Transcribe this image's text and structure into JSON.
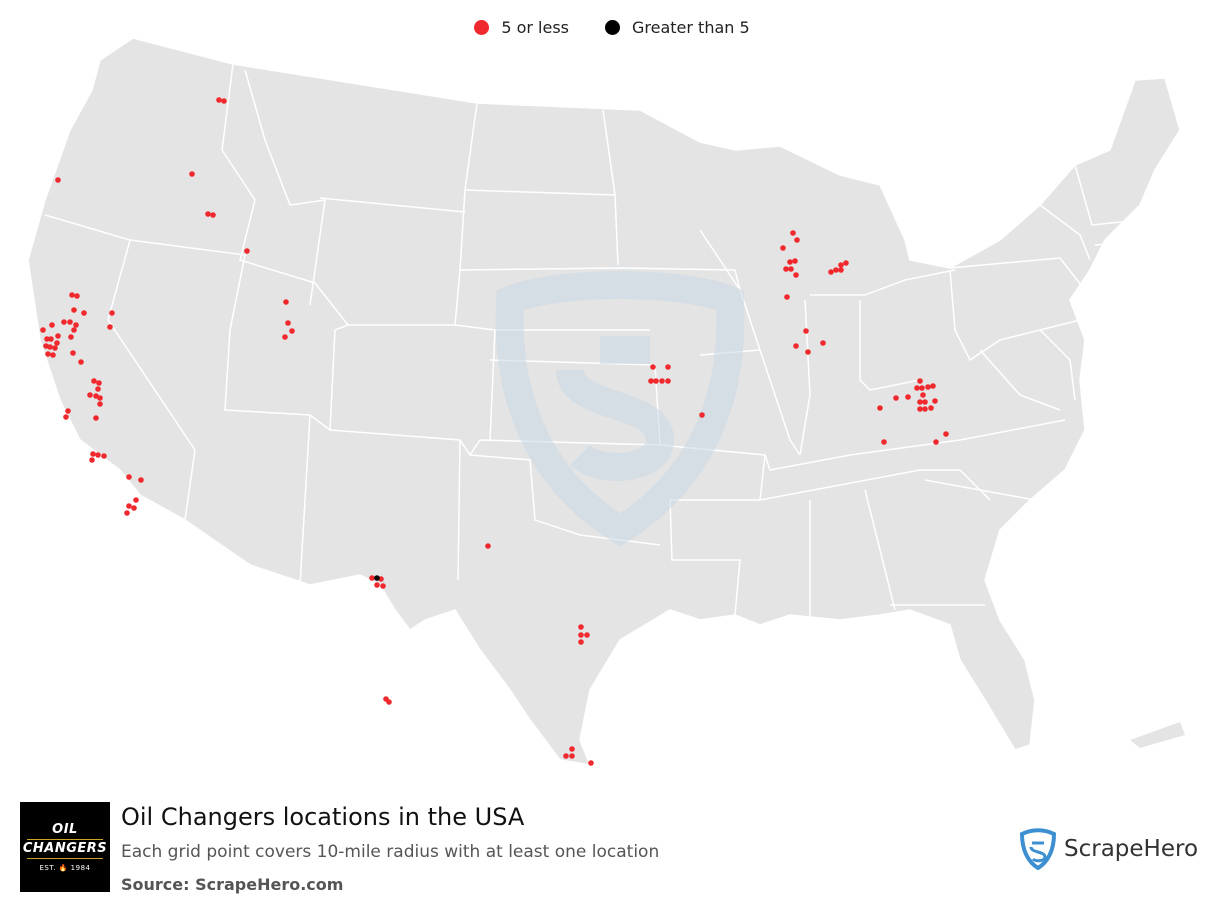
{
  "legend": {
    "items": [
      {
        "label": "5 or less",
        "color": "#f0292e"
      },
      {
        "label": "Greater than 5",
        "color": "#000000"
      }
    ]
  },
  "map": {
    "land_color": "#e4e4e4",
    "border_color": "#ffffff",
    "watermark": "ScrapeHero shield logo"
  },
  "footer": {
    "title": "Oil Changers locations in the USA",
    "subtitle": "Each grid point covers 10-mile radius with at least one location",
    "source": "Source: ScrapeHero.com",
    "logo": {
      "line1": "OIL",
      "line2": "CHANGERS",
      "line3": "EST. 🔥 1984"
    },
    "brand": "ScrapeHero",
    "brand_color": "#3d8fd1"
  }
}
